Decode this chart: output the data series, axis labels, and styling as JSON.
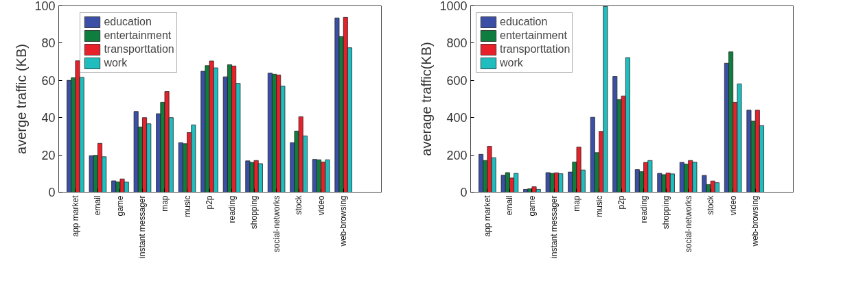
{
  "chart_data": [
    {
      "type": "bar",
      "ylabel": "averge traffic (KB)",
      "categories": [
        "app market",
        "email",
        "game",
        "instant messager",
        "map",
        "music",
        "p2p",
        "reading",
        "shopping",
        "social-networks",
        "stock",
        "video",
        "web-browsing"
      ],
      "ylim": [
        0,
        100
      ],
      "yticks": [
        0,
        20,
        40,
        60,
        80,
        100
      ],
      "legend": "top left",
      "series": [
        {
          "name": "education",
          "color": "#3a4fa5",
          "values": [
            60,
            19.6,
            6.1,
            43.3,
            42.1,
            26.6,
            64.9,
            61.9,
            16.8,
            63.9,
            26.6,
            17.6,
            93.5
          ]
        },
        {
          "name": "entertainment",
          "color": "#0f7d3d",
          "values": [
            61.4,
            19.8,
            5.5,
            35,
            48.2,
            26,
            67.9,
            68.4,
            16,
            63.3,
            32.8,
            17.4,
            83.5
          ]
        },
        {
          "name": "transporttation",
          "color": "#e8202a",
          "values": [
            70.5,
            26.2,
            7.1,
            40,
            54,
            32,
            70.4,
            67.7,
            17,
            62.9,
            40.5,
            16.2,
            93.8
          ]
        },
        {
          "name": "work",
          "color": "#1fbdbd",
          "values": [
            61.6,
            19,
            5.4,
            36.7,
            40,
            36.1,
            66.7,
            58.4,
            15.3,
            56.9,
            30.2,
            17.4,
            77.5
          ]
        }
      ]
    },
    {
      "type": "bar",
      "ylabel": "average traffic(KB)",
      "categories": [
        "app market",
        "email",
        "game",
        "instant messager",
        "map",
        "music",
        "p2p",
        "reading",
        "shopping",
        "social-networks",
        "stock",
        "video",
        "web-browsing"
      ],
      "ylim": [
        0,
        1000
      ],
      "yticks": [
        0,
        200,
        400,
        600,
        800,
        1000
      ],
      "legend": "top left",
      "series": [
        {
          "name": "education",
          "color": "#3a4fa5",
          "values": [
            203,
            91,
            15,
            105,
            108,
            402,
            621,
            121,
            101,
            160,
            90,
            692,
            440
          ]
        },
        {
          "name": "entertainment",
          "color": "#0f7d3d",
          "values": [
            170,
            105,
            18,
            101,
            162,
            212,
            497,
            110,
            94,
            151,
            41,
            753,
            381
          ]
        },
        {
          "name": "transporttation",
          "color": "#e8202a",
          "values": [
            246,
            76,
            29,
            104,
            242,
            326,
            516,
            160,
            103,
            170,
            60,
            482,
            440
          ]
        },
        {
          "name": "work",
          "color": "#1fbdbd",
          "values": [
            185,
            101,
            15,
            99,
            119,
            997,
            722,
            170,
            98,
            161,
            51,
            581,
            357
          ]
        }
      ]
    }
  ]
}
